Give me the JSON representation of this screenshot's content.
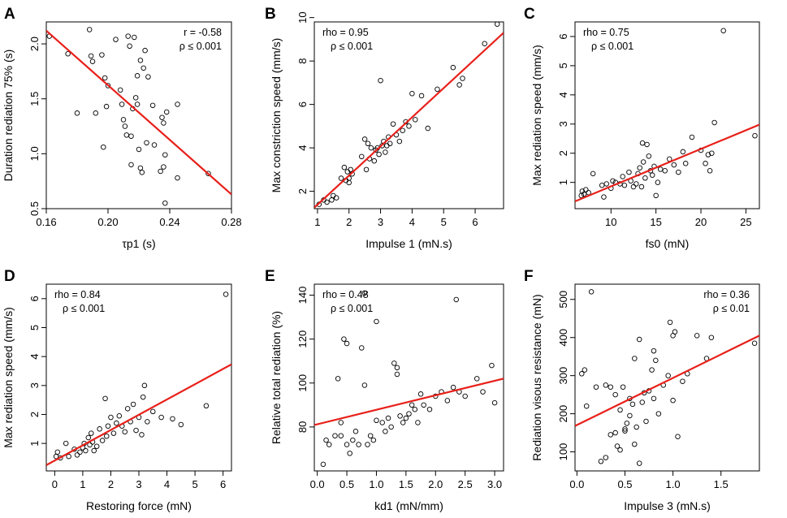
{
  "chart_data": [
    {
      "id": "A",
      "letter": "A",
      "type": "scatter",
      "xlabel": "τp1 (s)",
      "ylabel": "Duration rediation 75% (s)",
      "xlim": [
        0.16,
        0.28
      ],
      "ylim": [
        0.5,
        2.2
      ],
      "xticks": [
        0.16,
        0.2,
        0.24,
        0.28
      ],
      "xticklabels": [
        "0.16",
        "0.20",
        "0.24",
        "0.28"
      ],
      "yticks": [
        0.5,
        1.0,
        1.5,
        2.0
      ],
      "yticklabels": [
        "0.5",
        "1.0",
        "1.5",
        "2.0"
      ],
      "stat_lines": [
        "r = -0.58",
        "ρ ≤ 0.001"
      ],
      "fit": {
        "x": [
          0.16,
          0.28
        ],
        "y": [
          2.12,
          0.63
        ]
      },
      "points": [
        [
          0.162,
          2.07
        ],
        [
          0.174,
          1.91
        ],
        [
          0.18,
          1.37
        ],
        [
          0.188,
          2.13
        ],
        [
          0.189,
          1.89
        ],
        [
          0.19,
          1.84
        ],
        [
          0.192,
          1.37
        ],
        [
          0.196,
          1.9
        ],
        [
          0.197,
          1.06
        ],
        [
          0.198,
          1.69
        ],
        [
          0.199,
          1.43
        ],
        [
          0.2,
          1.62
        ],
        [
          0.205,
          2.04
        ],
        [
          0.208,
          1.58
        ],
        [
          0.209,
          1.45
        ],
        [
          0.21,
          1.31
        ],
        [
          0.211,
          1.25
        ],
        [
          0.212,
          1.17
        ],
        [
          0.213,
          2.07
        ],
        [
          0.214,
          1.98
        ],
        [
          0.215,
          0.9
        ],
        [
          0.215,
          1.16
        ],
        [
          0.216,
          1.41
        ],
        [
          0.217,
          2.06
        ],
        [
          0.218,
          1.51
        ],
        [
          0.219,
          1.45
        ],
        [
          0.219,
          1.71
        ],
        [
          0.22,
          1.04
        ],
        [
          0.221,
          0.87
        ],
        [
          0.221,
          1.85
        ],
        [
          0.222,
          0.83
        ],
        [
          0.223,
          1.78
        ],
        [
          0.224,
          1.94
        ],
        [
          0.225,
          1.1
        ],
        [
          0.226,
          1.7
        ],
        [
          0.229,
          1.44
        ],
        [
          0.23,
          1.08
        ],
        [
          0.234,
          0.84
        ],
        [
          0.235,
          1.33
        ],
        [
          0.236,
          0.88
        ],
        [
          0.236,
          1.28
        ],
        [
          0.237,
          0.55
        ],
        [
          0.237,
          0.99
        ],
        [
          0.238,
          1.38
        ],
        [
          0.245,
          0.78
        ],
        [
          0.245,
          1.45
        ],
        [
          0.265,
          0.82
        ]
      ]
    },
    {
      "id": "B",
      "letter": "B",
      "type": "scatter",
      "xlabel": "Impulse 1 (mN.s)",
      "ylabel": "Max constriction speed (mm/s)",
      "xlim": [
        0.9,
        6.9
      ],
      "ylim": [
        1.2,
        9.8
      ],
      "xticks": [
        1,
        2,
        3,
        4,
        5,
        6
      ],
      "xticklabels": [
        "1",
        "2",
        "3",
        "4",
        "5",
        "6"
      ],
      "yticks": [
        2,
        4,
        6,
        8,
        10
      ],
      "yticklabels": [
        "2",
        "4",
        "6",
        "8",
        "10"
      ],
      "stat_lines": [
        "rho = 0.95",
        "ρ ≤ 0.001"
      ],
      "fit": {
        "x": [
          0.9,
          6.9
        ],
        "y": [
          1.25,
          9.3
        ]
      },
      "points": [
        [
          1.05,
          1.4
        ],
        [
          1.2,
          1.6
        ],
        [
          1.3,
          1.5
        ],
        [
          1.45,
          1.6
        ],
        [
          1.5,
          1.8
        ],
        [
          1.6,
          1.7
        ],
        [
          1.75,
          2.6
        ],
        [
          1.85,
          3.1
        ],
        [
          1.9,
          2.5
        ],
        [
          1.95,
          2.9
        ],
        [
          2.0,
          2.6
        ],
        [
          2.0,
          2.4
        ],
        [
          2.05,
          3.0
        ],
        [
          2.1,
          2.8
        ],
        [
          2.4,
          3.6
        ],
        [
          2.5,
          4.4
        ],
        [
          2.55,
          3.0
        ],
        [
          2.6,
          4.2
        ],
        [
          2.65,
          3.5
        ],
        [
          2.7,
          4.0
        ],
        [
          2.8,
          3.4
        ],
        [
          2.85,
          3.9
        ],
        [
          2.9,
          4.0
        ],
        [
          2.95,
          3.7
        ],
        [
          3.0,
          7.1
        ],
        [
          3.05,
          4.1
        ],
        [
          3.1,
          4.3
        ],
        [
          3.15,
          3.8
        ],
        [
          3.2,
          4.1
        ],
        [
          3.25,
          4.5
        ],
        [
          3.3,
          4.2
        ],
        [
          3.4,
          5.1
        ],
        [
          3.5,
          4.6
        ],
        [
          3.6,
          4.3
        ],
        [
          3.7,
          4.8
        ],
        [
          3.8,
          5.2
        ],
        [
          3.9,
          5.0
        ],
        [
          4.0,
          6.5
        ],
        [
          4.1,
          5.3
        ],
        [
          4.3,
          6.4
        ],
        [
          4.5,
          4.9
        ],
        [
          4.8,
          6.7
        ],
        [
          5.3,
          7.7
        ],
        [
          5.5,
          6.9
        ],
        [
          5.6,
          7.2
        ],
        [
          6.3,
          8.8
        ],
        [
          6.7,
          9.7
        ]
      ]
    },
    {
      "id": "C",
      "letter": "C",
      "type": "scatter",
      "xlabel": "fs0 (mN)",
      "ylabel": "Max rediation speed (mm/s)",
      "xlim": [
        6,
        26.5
      ],
      "ylim": [
        0.1,
        6.5
      ],
      "xticks": [
        10,
        15,
        20,
        25
      ],
      "xticklabels": [
        "10",
        "15",
        "20",
        "25"
      ],
      "yticks": [
        1,
        2,
        3,
        4,
        5,
        6
      ],
      "yticklabels": [
        "1",
        "2",
        "3",
        "4",
        "5",
        "6"
      ],
      "stat_lines": [
        "rho = 0.75",
        "ρ ≤ 0.001"
      ],
      "fit": {
        "x": [
          6,
          26.5
        ],
        "y": [
          0.35,
          2.98
        ]
      },
      "points": [
        [
          6.7,
          0.55
        ],
        [
          6.8,
          0.7
        ],
        [
          7.0,
          0.6
        ],
        [
          7.2,
          0.75
        ],
        [
          7.5,
          0.65
        ],
        [
          8.0,
          1.3
        ],
        [
          9.0,
          0.9
        ],
        [
          9.2,
          0.5
        ],
        [
          9.5,
          0.95
        ],
        [
          10.0,
          0.8
        ],
        [
          10.2,
          1.05
        ],
        [
          10.5,
          1.0
        ],
        [
          11.0,
          0.95
        ],
        [
          11.3,
          1.2
        ],
        [
          11.5,
          0.9
        ],
        [
          12.0,
          1.35
        ],
        [
          12.2,
          1.05
        ],
        [
          12.5,
          0.85
        ],
        [
          12.8,
          0.95
        ],
        [
          13.0,
          1.3
        ],
        [
          13.2,
          1.5
        ],
        [
          13.4,
          0.85
        ],
        [
          13.5,
          2.35
        ],
        [
          13.6,
          1.7
        ],
        [
          13.8,
          1.15
        ],
        [
          14.0,
          2.3
        ],
        [
          14.2,
          1.9
        ],
        [
          14.4,
          1.4
        ],
        [
          14.6,
          1.25
        ],
        [
          14.8,
          1.55
        ],
        [
          15.0,
          0.55
        ],
        [
          15.2,
          1.0
        ],
        [
          15.5,
          1.45
        ],
        [
          16.0,
          1.4
        ],
        [
          16.5,
          1.8
        ],
        [
          17.0,
          1.6
        ],
        [
          17.5,
          1.35
        ],
        [
          18.0,
          2.05
        ],
        [
          18.3,
          1.65
        ],
        [
          19.0,
          2.55
        ],
        [
          20.0,
          2.1
        ],
        [
          20.5,
          1.65
        ],
        [
          20.8,
          1.95
        ],
        [
          21.0,
          1.4
        ],
        [
          21.2,
          2.0
        ],
        [
          21.5,
          3.05
        ],
        [
          22.5,
          6.2
        ],
        [
          26.0,
          2.6
        ]
      ]
    },
    {
      "id": "D",
      "letter": "D",
      "type": "scatter",
      "xlabel": "Restoring force (mN)",
      "ylabel": "Max rediation speed (mm/s)",
      "xlim": [
        -0.3,
        6.3
      ],
      "ylim": [
        0.05,
        6.5
      ],
      "xticks": [
        0,
        1,
        2,
        3,
        4,
        5,
        6
      ],
      "xticklabels": [
        "0",
        "1",
        "2",
        "3",
        "4",
        "5",
        "6"
      ],
      "yticks": [
        1,
        2,
        3,
        4,
        5,
        6
      ],
      "yticklabels": [
        "1",
        "2",
        "3",
        "4",
        "5",
        "6"
      ],
      "stat_lines": [
        "rho = 0.84",
        "ρ ≤ 0.001"
      ],
      "fit": {
        "x": [
          -0.3,
          6.3
        ],
        "y": [
          0.25,
          3.73
        ]
      },
      "points": [
        [
          0.05,
          0.55
        ],
        [
          0.1,
          0.7
        ],
        [
          0.2,
          0.5
        ],
        [
          0.4,
          1.0
        ],
        [
          0.5,
          0.55
        ],
        [
          0.7,
          0.8
        ],
        [
          0.8,
          0.6
        ],
        [
          0.9,
          0.7
        ],
        [
          1.0,
          0.85
        ],
        [
          1.05,
          1.0
        ],
        [
          1.1,
          0.75
        ],
        [
          1.2,
          1.2
        ],
        [
          1.25,
          0.95
        ],
        [
          1.3,
          1.35
        ],
        [
          1.35,
          1.05
        ],
        [
          1.4,
          0.75
        ],
        [
          1.5,
          0.9
        ],
        [
          1.6,
          1.5
        ],
        [
          1.7,
          1.1
        ],
        [
          1.8,
          2.55
        ],
        [
          1.85,
          1.25
        ],
        [
          1.9,
          1.6
        ],
        [
          2.0,
          1.9
        ],
        [
          2.1,
          1.35
        ],
        [
          2.2,
          1.7
        ],
        [
          2.3,
          1.95
        ],
        [
          2.4,
          1.6
        ],
        [
          2.5,
          1.4
        ],
        [
          2.6,
          2.2
        ],
        [
          2.7,
          1.75
        ],
        [
          2.8,
          2.35
        ],
        [
          2.9,
          1.45
        ],
        [
          3.0,
          1.9
        ],
        [
          3.1,
          1.3
        ],
        [
          3.15,
          2.6
        ],
        [
          3.2,
          3.0
        ],
        [
          3.3,
          1.75
        ],
        [
          3.5,
          2.1
        ],
        [
          3.8,
          1.9
        ],
        [
          4.2,
          1.85
        ],
        [
          4.5,
          1.65
        ],
        [
          5.4,
          2.3
        ],
        [
          6.1,
          6.15
        ]
      ]
    },
    {
      "id": "E",
      "letter": "E",
      "type": "scatter",
      "xlabel": "kd1 (mN/mm)",
      "ylabel": "Relative total rediation (%)",
      "xlim": [
        -0.05,
        3.15
      ],
      "ylim": [
        60,
        145
      ],
      "xticks": [
        0.0,
        0.5,
        1.0,
        1.5,
        2.0,
        2.5,
        3.0
      ],
      "xticklabels": [
        "0.0",
        "0.5",
        "1.0",
        "1.5",
        "2.0",
        "2.5",
        "3.0"
      ],
      "yticks": [
        80,
        100,
        120,
        140
      ],
      "yticklabels": [
        "80",
        "100",
        "120",
        "140"
      ],
      "stat_lines": [
        "rho = 0.48",
        "ρ ≤ 0.001"
      ],
      "fit": {
        "x": [
          -0.05,
          3.15
        ],
        "y": [
          80.9,
          102
        ]
      },
      "points": [
        [
          0.1,
          63
        ],
        [
          0.15,
          74
        ],
        [
          0.2,
          72
        ],
        [
          0.3,
          76
        ],
        [
          0.35,
          102
        ],
        [
          0.4,
          76
        ],
        [
          0.4,
          82
        ],
        [
          0.45,
          120
        ],
        [
          0.5,
          118
        ],
        [
          0.5,
          72
        ],
        [
          0.55,
          68
        ],
        [
          0.6,
          74
        ],
        [
          0.65,
          78
        ],
        [
          0.7,
          72
        ],
        [
          0.75,
          116
        ],
        [
          0.8,
          141
        ],
        [
          0.8,
          99
        ],
        [
          0.85,
          72
        ],
        [
          0.9,
          76
        ],
        [
          0.95,
          74
        ],
        [
          1.0,
          83
        ],
        [
          1.0,
          128
        ],
        [
          1.1,
          82
        ],
        [
          1.15,
          78
        ],
        [
          1.2,
          84
        ],
        [
          1.25,
          80
        ],
        [
          1.3,
          109
        ],
        [
          1.35,
          107
        ],
        [
          1.35,
          104
        ],
        [
          1.4,
          85
        ],
        [
          1.45,
          82
        ],
        [
          1.5,
          84
        ],
        [
          1.55,
          86
        ],
        [
          1.6,
          90
        ],
        [
          1.65,
          88
        ],
        [
          1.7,
          82
        ],
        [
          1.75,
          95
        ],
        [
          1.8,
          90
        ],
        [
          1.9,
          88
        ],
        [
          2.0,
          94
        ],
        [
          2.1,
          96
        ],
        [
          2.2,
          92
        ],
        [
          2.3,
          98
        ],
        [
          2.35,
          138
        ],
        [
          2.4,
          96
        ],
        [
          2.5,
          94
        ],
        [
          2.7,
          102
        ],
        [
          2.8,
          96
        ],
        [
          2.95,
          108
        ],
        [
          3.0,
          91
        ]
      ]
    },
    {
      "id": "F",
      "letter": "F",
      "type": "scatter",
      "xlabel": "Impulse 3 (mN.s)",
      "ylabel": "Rediation visous resistance (mN)",
      "xlim": [
        -0.02,
        1.9
      ],
      "ylim": [
        50,
        540
      ],
      "xticks": [
        0.0,
        0.5,
        1.0,
        1.5
      ],
      "xticklabels": [
        "0.0",
        "0.5",
        "1.0",
        "1.5"
      ],
      "yticks": [
        100,
        200,
        300,
        400,
        500
      ],
      "yticklabels": [
        "100",
        "200",
        "300",
        "400",
        "500"
      ],
      "stat_lines": [
        "rho = 0.36",
        "ρ ≤ 0.01"
      ],
      "fit": {
        "x": [
          -0.02,
          1.9
        ],
        "y": [
          168,
          405
        ]
      },
      "points": [
        [
          0.05,
          305
        ],
        [
          0.08,
          315
        ],
        [
          0.1,
          220
        ],
        [
          0.15,
          520
        ],
        [
          0.2,
          270
        ],
        [
          0.25,
          75
        ],
        [
          0.3,
          85
        ],
        [
          0.3,
          275
        ],
        [
          0.35,
          145
        ],
        [
          0.35,
          270
        ],
        [
          0.4,
          150
        ],
        [
          0.4,
          250
        ],
        [
          0.42,
          115
        ],
        [
          0.45,
          105
        ],
        [
          0.45,
          210
        ],
        [
          0.48,
          270
        ],
        [
          0.5,
          160
        ],
        [
          0.5,
          155
        ],
        [
          0.52,
          175
        ],
        [
          0.55,
          240
        ],
        [
          0.55,
          195
        ],
        [
          0.58,
          225
        ],
        [
          0.6,
          345
        ],
        [
          0.6,
          120
        ],
        [
          0.62,
          165
        ],
        [
          0.65,
          395
        ],
        [
          0.65,
          70
        ],
        [
          0.68,
          230
        ],
        [
          0.7,
          255
        ],
        [
          0.72,
          180
        ],
        [
          0.75,
          260
        ],
        [
          0.78,
          315
        ],
        [
          0.8,
          365
        ],
        [
          0.8,
          240
        ],
        [
          0.82,
          340
        ],
        [
          0.85,
          200
        ],
        [
          0.9,
          275
        ],
        [
          0.95,
          300
        ],
        [
          0.97,
          440
        ],
        [
          1.0,
          235
        ],
        [
          1.0,
          405
        ],
        [
          1.02,
          415
        ],
        [
          1.05,
          140
        ],
        [
          1.1,
          285
        ],
        [
          1.15,
          305
        ],
        [
          1.25,
          405
        ],
        [
          1.35,
          345
        ],
        [
          1.4,
          400
        ],
        [
          1.85,
          385
        ]
      ]
    }
  ]
}
